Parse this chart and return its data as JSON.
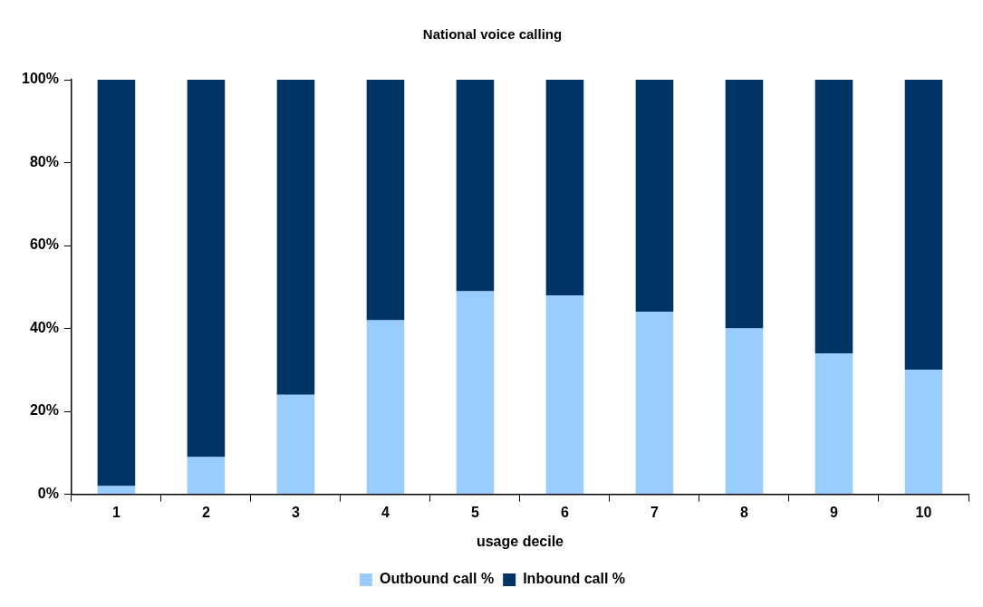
{
  "chart_data": {
    "type": "bar",
    "title": "National voice calling",
    "xlabel": "usage decile",
    "categories": [
      "1",
      "2",
      "3",
      "4",
      "5",
      "6",
      "7",
      "8",
      "9",
      "10"
    ],
    "stacked": true,
    "legend": "bottom",
    "grid": false,
    "series": [
      {
        "name": "Outbound call %",
        "color": "#99ccff",
        "values": [
          2,
          9,
          24,
          42,
          49,
          48,
          44,
          40,
          34,
          30
        ]
      },
      {
        "name": "Inbound call %",
        "color": "#003366",
        "values": [
          98,
          91,
          76,
          58,
          51,
          52,
          56,
          60,
          66,
          70
        ]
      }
    ],
    "ylim": [
      0,
      100
    ],
    "yticks": [
      {
        "value": 0,
        "label": "0%"
      },
      {
        "value": 20,
        "label": "20%"
      },
      {
        "value": 40,
        "label": "40%"
      },
      {
        "value": 60,
        "label": "60%"
      },
      {
        "value": 80,
        "label": "80%"
      },
      {
        "value": 100,
        "label": "100%"
      }
    ]
  }
}
